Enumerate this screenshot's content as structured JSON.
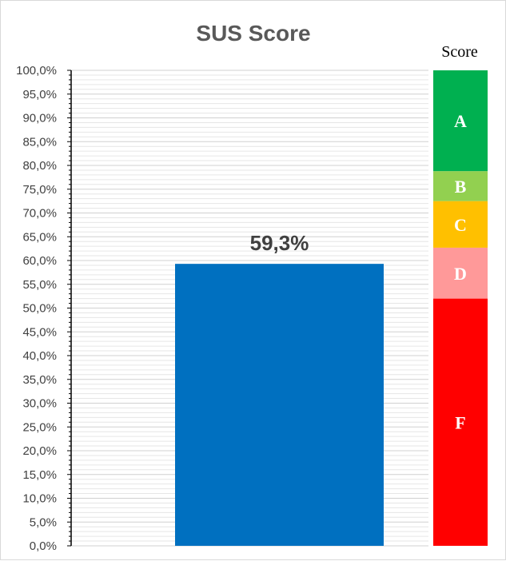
{
  "chart_data": {
    "type": "bar",
    "title": "SUS Score",
    "categories": [
      ""
    ],
    "values": [
      59.3
    ],
    "value_label": "59,3%",
    "ylim": [
      0,
      100
    ],
    "y_tick_step": 5,
    "y_tick_labels": [
      "0,0%",
      "5,0%",
      "10,0%",
      "15,0%",
      "20,0%",
      "25,0%",
      "30,0%",
      "35,0%",
      "40,0%",
      "45,0%",
      "50,0%",
      "55,0%",
      "60,0%",
      "65,0%",
      "70,0%",
      "75,0%",
      "80,0%",
      "85,0%",
      "90,0%",
      "95,0%",
      "100,0%"
    ],
    "minor_gridlines": true,
    "bar_color": "#0070C0",
    "grade_scale": {
      "header": "Score",
      "bands": [
        {
          "label": "F",
          "from": 0,
          "to": 52,
          "color": "#FF0000"
        },
        {
          "label": "D",
          "from": 52,
          "to": 62.7,
          "color": "#FF9999"
        },
        {
          "label": "C",
          "from": 62.7,
          "to": 72.5,
          "color": "#FFC000"
        },
        {
          "label": "B",
          "from": 72.5,
          "to": 78.8,
          "color": "#92D050"
        },
        {
          "label": "A",
          "from": 78.8,
          "to": 100,
          "color": "#00B050"
        }
      ]
    }
  }
}
